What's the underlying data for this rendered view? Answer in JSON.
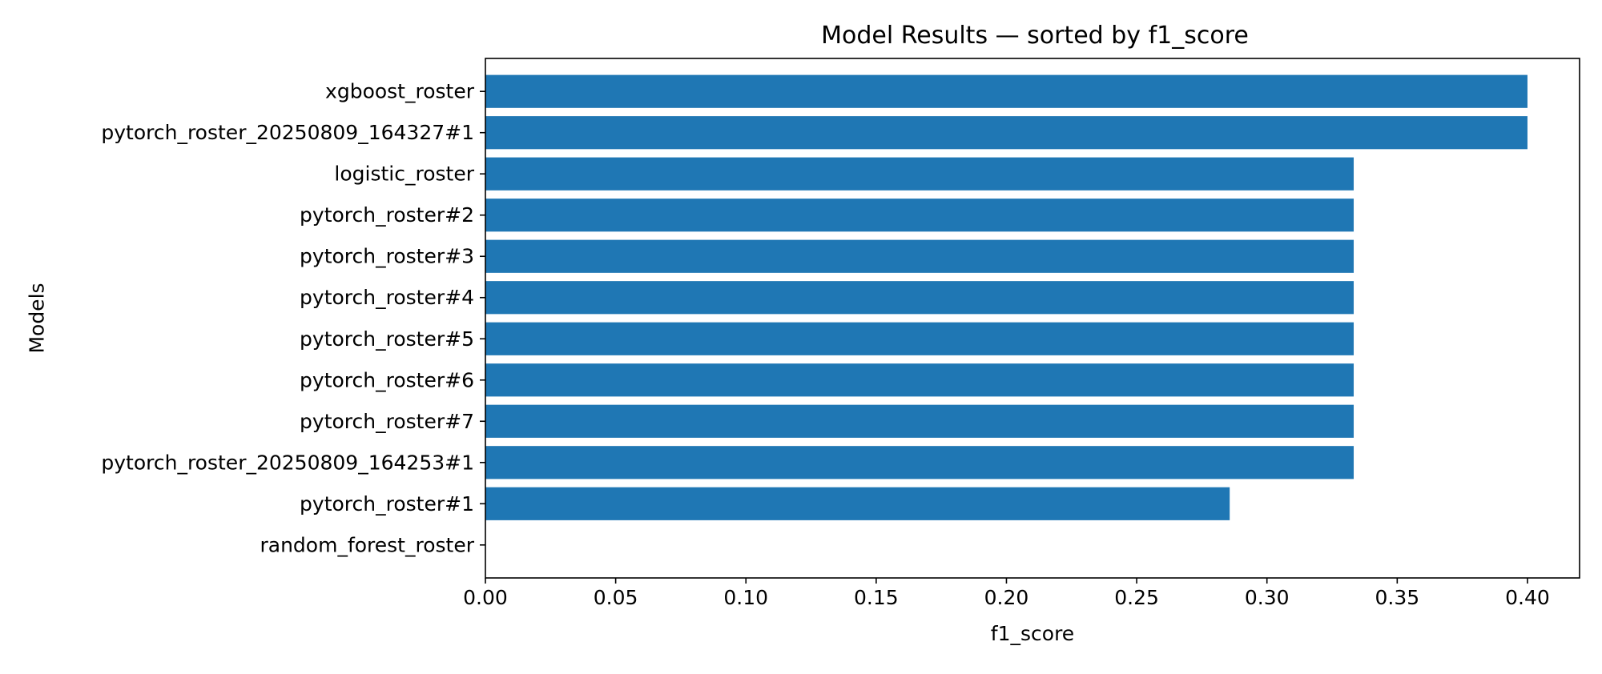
{
  "chart_data": {
    "type": "bar",
    "orientation": "horizontal",
    "title": "Model Results — sorted by f1_score",
    "xlabel": "f1_score",
    "ylabel": "Models",
    "categories": [
      "xgboost_roster",
      "pytorch_roster_20250809_164327#1",
      "logistic_roster",
      "pytorch_roster#2",
      "pytorch_roster#3",
      "pytorch_roster#4",
      "pytorch_roster#5",
      "pytorch_roster#6",
      "pytorch_roster#7",
      "pytorch_roster_20250809_164253#1",
      "pytorch_roster#1",
      "random_forest_roster"
    ],
    "values": [
      0.4,
      0.4,
      0.3333,
      0.3333,
      0.3333,
      0.3333,
      0.3333,
      0.3333,
      0.3333,
      0.3333,
      0.2857,
      0.0
    ],
    "xlim": [
      0,
      0.42
    ],
    "xticks": [
      0.0,
      0.05,
      0.1,
      0.15,
      0.2,
      0.25,
      0.3,
      0.35,
      0.4
    ],
    "xtick_labels": [
      "0.00",
      "0.05",
      "0.10",
      "0.15",
      "0.20",
      "0.25",
      "0.30",
      "0.35",
      "0.40"
    ],
    "bar_color": "#1f77b4",
    "grid": false,
    "legend": "none"
  }
}
